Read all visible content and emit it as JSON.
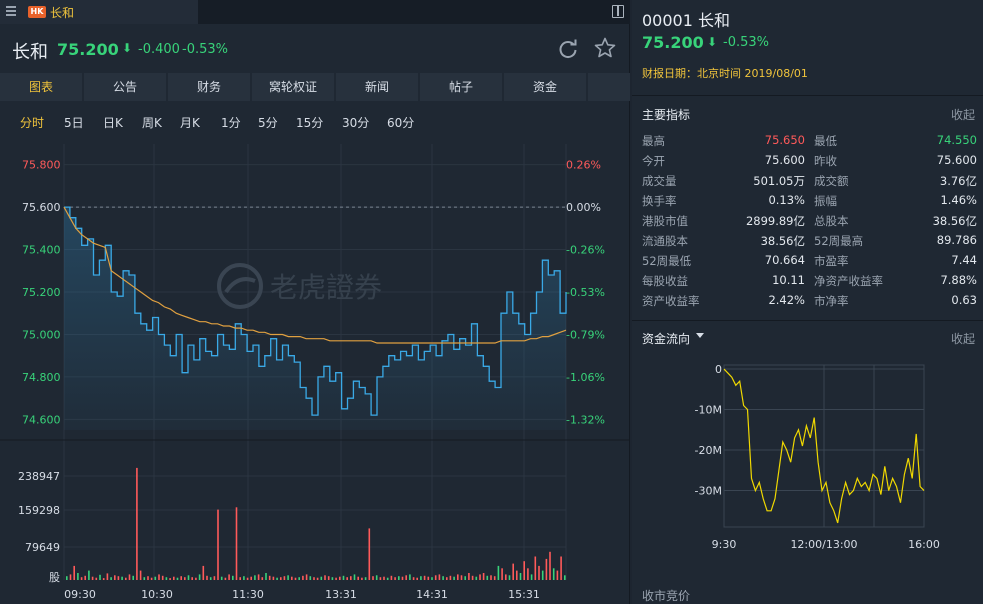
{
  "tab": {
    "market": "HK",
    "name": "长和"
  },
  "quote": {
    "name": "长和",
    "price": "75.200",
    "arrow": "⬇",
    "change": "-0.400",
    "change_pct": "-0.53%"
  },
  "nav_tabs": [
    "图表",
    "公告",
    "财务",
    "窝轮权证",
    "新闻",
    "帖子",
    "资金"
  ],
  "periods": [
    "分时",
    "5日",
    "日K",
    "周K",
    "月K",
    "1分",
    "5分",
    "15分",
    "30分",
    "60分"
  ],
  "watermark": "老虎證券",
  "right": {
    "title": "00001 长和",
    "price": "75.200",
    "arrow": "⬇",
    "change_pct": "-0.53%",
    "report_date": "财报日期：北京时间 2019/08/01",
    "key_metrics_title": "主要指标",
    "collapse_label": "收起",
    "stats": [
      {
        "l1": "最高",
        "v1": "75.650",
        "c1": "red",
        "l2": "最低",
        "v2": "74.550",
        "c2": "green"
      },
      {
        "l1": "今开",
        "v1": "75.600",
        "c1": "",
        "l2": "昨收",
        "v2": "75.600",
        "c2": ""
      },
      {
        "l1": "成交量",
        "v1": "501.05万",
        "c1": "",
        "l2": "成交额",
        "v2": "3.76亿",
        "c2": ""
      },
      {
        "l1": "换手率",
        "v1": "0.13%",
        "c1": "",
        "l2": "振幅",
        "v2": "1.46%",
        "c2": ""
      },
      {
        "l1": "港股市值",
        "v1": "2899.89亿",
        "c1": "",
        "l2": "总股本",
        "v2": "38.56亿",
        "c2": ""
      },
      {
        "l1": "流通股本",
        "v1": "38.56亿",
        "c1": "",
        "l2": "52周最高",
        "v2": "89.786",
        "c2": ""
      },
      {
        "l1": "52周最低",
        "v1": "70.664",
        "c1": "",
        "l2": "市盈率",
        "v2": "7.44",
        "c2": ""
      },
      {
        "l1": "每股收益",
        "v1": "10.11",
        "c1": "",
        "l2": "净资产收益率",
        "v2": "7.88%",
        "c2": ""
      },
      {
        "l1": "资产收益率",
        "v1": "2.42%",
        "c1": "",
        "l2": "市净率",
        "v2": "0.63",
        "c2": ""
      }
    ],
    "flow_title": "资金流向",
    "flow_collapse": "收起",
    "bottom_label": "收市竞价"
  },
  "chart_data": [
    {
      "type": "line",
      "series": [
        {
          "values": [
            75.6,
            75.55,
            75.5,
            75.42,
            75.45,
            75.28,
            75.35,
            75.42,
            75.2,
            75.18,
            75.3,
            75.28,
            75.1,
            75.05,
            75.02,
            75.08,
            75.0,
            74.95,
            74.9,
            75.0,
            74.82,
            74.95,
            74.88,
            74.98,
            74.92,
            74.9,
            75.0,
            74.95,
            74.93,
            75.05,
            75.0,
            74.92,
            74.95,
            74.85,
            74.9,
            74.98,
            74.88,
            74.95,
            74.9,
            74.87,
            74.75,
            74.7,
            74.62,
            74.8,
            74.85,
            74.78,
            74.82,
            74.65,
            74.7,
            74.78,
            74.75,
            74.72,
            74.62,
            74.8,
            74.85,
            74.9,
            74.88,
            74.92,
            74.9,
            74.95,
            74.88,
            74.92,
            74.95,
            74.9,
            74.97,
            75.0,
            74.93,
            74.98,
            74.95,
            75.05,
            74.9,
            74.85,
            74.78,
            74.75,
            75.1,
            75.2,
            75.1,
            75.05,
            75.0,
            75.1,
            75.2,
            75.35,
            75.28,
            75.3,
            75.1,
            75.2
          ]
        },
        {
          "values": [
            75.6,
            75.55,
            75.5,
            75.47,
            75.45,
            75.43,
            75.42,
            75.41,
            75.3,
            75.28,
            75.26,
            75.24,
            75.22,
            75.2,
            75.18,
            75.16,
            75.15,
            75.13,
            75.12,
            75.1,
            75.09,
            75.08,
            75.07,
            75.06,
            75.06,
            75.05,
            75.05,
            75.04,
            75.04,
            75.03,
            75.03,
            75.02,
            75.02,
            75.01,
            75.01,
            75.0,
            75.0,
            75.0,
            74.99,
            74.99,
            74.99,
            74.98,
            74.98,
            74.98,
            74.98,
            74.97,
            74.97,
            74.97,
            74.97,
            74.97,
            74.97,
            74.97,
            74.97,
            74.96,
            74.96,
            74.96,
            74.96,
            74.96,
            74.96,
            74.96,
            74.96,
            74.96,
            74.96,
            74.96,
            74.96,
            74.96,
            74.96,
            74.96,
            74.96,
            74.96,
            74.96,
            74.96,
            74.96,
            74.96,
            74.97,
            74.97,
            74.97,
            74.97,
            74.97,
            74.98,
            74.98,
            74.99,
            74.99,
            75.0,
            75.01,
            75.02
          ]
        }
      ],
      "y_ticks": [
        "75.800",
        "75.600",
        "75.400",
        "75.200",
        "75.000",
        "74.800",
        "74.600"
      ],
      "pct_ticks": [
        "0.26%",
        "0.00%",
        "-0.26%",
        "-0.53%",
        "-0.79%",
        "-1.06%",
        "-1.32%"
      ],
      "ylim": [
        74.55,
        75.85
      ],
      "x_ticks": [
        "09:30",
        "10:30",
        "11:30",
        "13:31",
        "14:31",
        "15:31"
      ]
    },
    {
      "type": "bar",
      "y_ticks": [
        "238947",
        "159298",
        "79649",
        "股"
      ],
      "ylim": [
        0,
        260000
      ],
      "values": [
        8000,
        12000,
        30000,
        15000,
        6000,
        9000,
        20000,
        7000,
        5000,
        11000,
        4000,
        14000,
        6000,
        10000,
        8000,
        7000,
        5000,
        12000,
        9000,
        238947,
        20000,
        6000,
        8000,
        5000,
        7000,
        12000,
        9000,
        6000,
        4000,
        7000,
        5000,
        8000,
        6000,
        10000,
        6000,
        5000,
        12000,
        30000,
        9000,
        6000,
        8000,
        150000,
        7000,
        5000,
        12000,
        9000,
        155000,
        6000,
        8000,
        5000,
        7000,
        10000,
        12000,
        6000,
        15000,
        9000,
        7000,
        5000,
        6000,
        8000,
        10000,
        7000,
        5000,
        6000,
        9000,
        12000,
        8000,
        6000,
        5000,
        7000,
        10000,
        8000,
        6000,
        5000,
        7000,
        9000,
        6000,
        8000,
        12000,
        7000,
        5000,
        6000,
        110000,
        8000,
        10000,
        6000,
        7000,
        5000,
        9000,
        6000,
        8000,
        7000,
        10000,
        12000,
        6000,
        5000,
        8000,
        9000,
        7000,
        6000,
        10000,
        12000,
        8000,
        6000,
        9000,
        7000,
        12000,
        10000,
        8000,
        15000,
        9000,
        7000,
        12000,
        15000,
        9000,
        10000,
        8000,
        30000,
        25000,
        12000,
        10000,
        35000,
        20000,
        15000,
        40000,
        25000,
        12000,
        50000,
        30000,
        20000,
        45000,
        60000,
        25000,
        20000,
        50000,
        10000
      ]
    },
    {
      "type": "line",
      "x_ticks": [
        "9:30",
        "12:00/13:00",
        "16:00"
      ],
      "y_ticks": [
        "0",
        "-10M",
        "-20M",
        "-30M"
      ],
      "ylim": [
        -39000000,
        1000000
      ],
      "series": [
        {
          "values": [
            0,
            -1000000,
            -2000000,
            -4000000,
            -3000000,
            -9000000,
            -10000000,
            -27000000,
            -30000000,
            -28000000,
            -32000000,
            -35000000,
            -35000000,
            -32000000,
            -25000000,
            -18000000,
            -20000000,
            -23000000,
            -17000000,
            -15000000,
            -19000000,
            -14000000,
            -17000000,
            -12000000,
            -23000000,
            -30000000,
            -28000000,
            -33000000,
            -35000000,
            -38000000,
            -32000000,
            -28000000,
            -31000000,
            -30000000,
            -27000000,
            -29000000,
            -28000000,
            -30000000,
            -26000000,
            -27000000,
            -31000000,
            -24000000,
            -30000000,
            -27000000,
            -29000000,
            -33000000,
            -26000000,
            -22000000,
            -27000000,
            -16000000,
            -29000000,
            -30000000
          ]
        }
      ]
    }
  ]
}
